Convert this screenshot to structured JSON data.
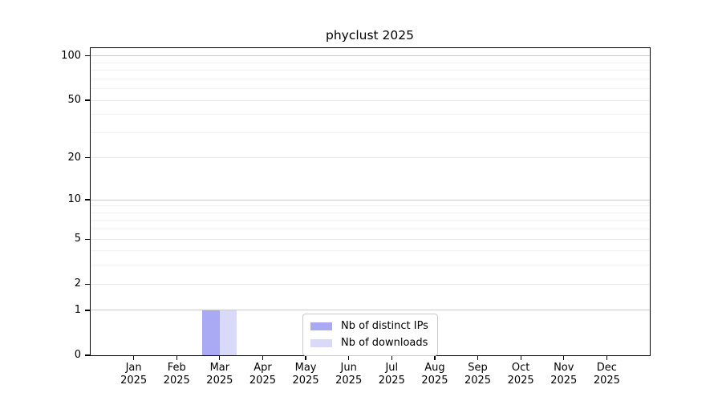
{
  "chart_data": {
    "type": "bar",
    "title": "phyclust 2025",
    "categories": [
      "Jan 2025",
      "Feb 2025",
      "Mar 2025",
      "Apr 2025",
      "May 2025",
      "Jun 2025",
      "Jul 2025",
      "Aug 2025",
      "Sep 2025",
      "Oct 2025",
      "Nov 2025",
      "Dec 2025"
    ],
    "x_tick_months": [
      "Jan",
      "Feb",
      "Mar",
      "Apr",
      "May",
      "Jun",
      "Jul",
      "Aug",
      "Sep",
      "Oct",
      "Nov",
      "Dec"
    ],
    "x_tick_year": "2025",
    "series": [
      {
        "name": "Nb of distinct IPs",
        "color": "#a9a9f4",
        "values": [
          0,
          0,
          1,
          0,
          0,
          0,
          0,
          0,
          0,
          0,
          0,
          0
        ]
      },
      {
        "name": "Nb of downloads",
        "color": "#d9d9f9",
        "values": [
          0,
          0,
          1,
          0,
          0,
          0,
          0,
          0,
          0,
          0,
          0,
          0
        ]
      }
    ],
    "y_scale": "log1p",
    "y_ticks": [
      0,
      1,
      2,
      5,
      10,
      20,
      50,
      100
    ],
    "y_decade_ticks": [
      1,
      10,
      100
    ],
    "y_minor_gridlines": [
      3,
      4,
      6,
      7,
      8,
      9,
      30,
      40,
      60,
      70,
      80,
      90
    ],
    "ylim": [
      0,
      113
    ],
    "xlim": [
      -1,
      12
    ],
    "bar_width": 0.4,
    "legend_position": "lower center",
    "grid": true
  }
}
